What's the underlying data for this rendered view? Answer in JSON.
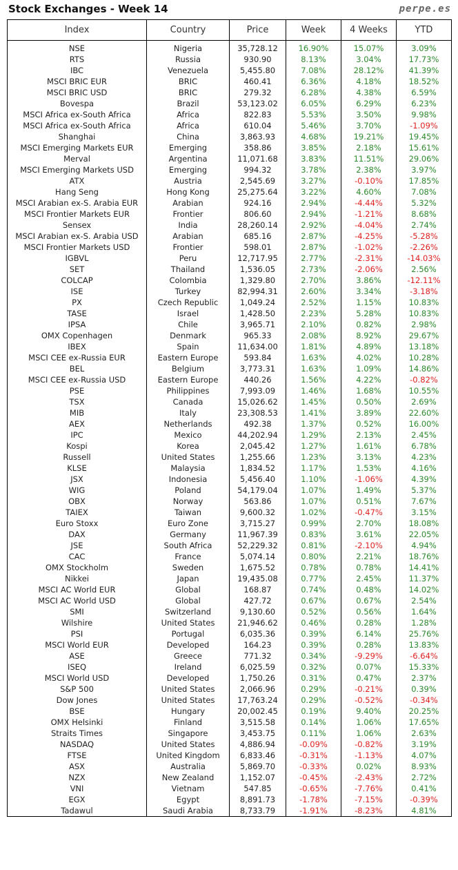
{
  "header": {
    "title": "Stock Exchanges - Week 14",
    "brand": "perpe.es"
  },
  "columns": [
    "Index",
    "Country",
    "Price",
    "Week",
    "4 Weeks",
    "YTD"
  ],
  "colors": {
    "positive": "#2e8b2e",
    "negative": "#e02020"
  },
  "rows": [
    [
      "NSE",
      "Nigeria",
      "35,728.12",
      "16.90%",
      "15.07%",
      "3.09%"
    ],
    [
      "RTS",
      "Russia",
      "930.90",
      "8.13%",
      "3.04%",
      "17.73%"
    ],
    [
      "IBC",
      "Venezuela",
      "5,455.80",
      "7.08%",
      "28.12%",
      "41.39%"
    ],
    [
      "MSCI BRIC EUR",
      "BRIC",
      "460.41",
      "6.36%",
      "4.18%",
      "18.52%"
    ],
    [
      "MSCI BRIC USD",
      "BRIC",
      "279.32",
      "6.28%",
      "4.38%",
      "6.59%"
    ],
    [
      "Bovespa",
      "Brazil",
      "53,123.02",
      "6.05%",
      "6.29%",
      "6.23%"
    ],
    [
      "MSCI Africa ex-South Africa",
      "Africa",
      "822.83",
      "5.53%",
      "3.50%",
      "9.98%"
    ],
    [
      "MSCI Africa ex-South Africa",
      "Africa",
      "610.04",
      "5.46%",
      "3.70%",
      "-1.09%"
    ],
    [
      "Shanghai",
      "China",
      "3,863.93",
      "4.68%",
      "19.21%",
      "19.45%"
    ],
    [
      "MSCI Emerging Markets EUR",
      "Emerging",
      "358.86",
      "3.85%",
      "2.18%",
      "15.61%"
    ],
    [
      "Merval",
      "Argentina",
      "11,071.68",
      "3.83%",
      "11.51%",
      "29.06%"
    ],
    [
      "MSCI Emerging Markets USD",
      "Emerging",
      "994.32",
      "3.78%",
      "2.38%",
      "3.97%"
    ],
    [
      "ATX",
      "Austria",
      "2,545.69",
      "3.27%",
      "-0.10%",
      "17.85%"
    ],
    [
      "Hang Seng",
      "Hong Kong",
      "25,275.64",
      "3.22%",
      "4.60%",
      "7.08%"
    ],
    [
      "MSCI Arabian ex-S. Arabia EUR",
      "Arabian",
      "924.16",
      "2.94%",
      "-4.44%",
      "5.32%"
    ],
    [
      "MSCI Frontier Markets EUR",
      "Frontier",
      "806.60",
      "2.94%",
      "-1.21%",
      "8.68%"
    ],
    [
      "Sensex",
      "India",
      "28,260.14",
      "2.92%",
      "-4.04%",
      "2.74%"
    ],
    [
      "MSCI Arabian ex-S. Arabia USD",
      "Arabian",
      "685.16",
      "2.87%",
      "-4.25%",
      "-5.28%"
    ],
    [
      "MSCI Frontier Markets USD",
      "Frontier",
      "598.01",
      "2.87%",
      "-1.02%",
      "-2.26%"
    ],
    [
      "IGBVL",
      "Peru",
      "12,717.95",
      "2.77%",
      "-2.31%",
      "-14.03%"
    ],
    [
      "SET",
      "Thailand",
      "1,536.05",
      "2.73%",
      "-2.06%",
      "2.56%"
    ],
    [
      "COLCAP",
      "Colombia",
      "1,329.80",
      "2.70%",
      "3.86%",
      "-12.11%"
    ],
    [
      "ISE",
      "Turkey",
      "82,994.31",
      "2.60%",
      "3.34%",
      "-3.18%"
    ],
    [
      "PX",
      "Czech Republic",
      "1,049.24",
      "2.52%",
      "1.15%",
      "10.83%"
    ],
    [
      "TASE",
      "Israel",
      "1,428.50",
      "2.23%",
      "5.28%",
      "10.83%"
    ],
    [
      "IPSA",
      "Chile",
      "3,965.71",
      "2.10%",
      "0.82%",
      "2.98%"
    ],
    [
      "OMX Copenhagen",
      "Denmark",
      "965.33",
      "2.08%",
      "8.92%",
      "29.67%"
    ],
    [
      "IBEX",
      "Spain",
      "11,634.00",
      "1.81%",
      "4.89%",
      "13.18%"
    ],
    [
      "MSCI CEE ex-Russia EUR",
      "Eastern Europe",
      "593.84",
      "1.63%",
      "4.02%",
      "10.28%"
    ],
    [
      "BEL",
      "Belgium",
      "3,773.31",
      "1.63%",
      "1.09%",
      "14.86%"
    ],
    [
      "MSCI CEE ex-Russia USD",
      "Eastern Europe",
      "440.26",
      "1.56%",
      "4.22%",
      "-0.82%"
    ],
    [
      "PSE",
      "Philippines",
      "7,993.09",
      "1.46%",
      "1.68%",
      "10.55%"
    ],
    [
      "TSX",
      "Canada",
      "15,026.62",
      "1.45%",
      "0.50%",
      "2.69%"
    ],
    [
      "MIB",
      "Italy",
      "23,308.53",
      "1.41%",
      "3.89%",
      "22.60%"
    ],
    [
      "AEX",
      "Netherlands",
      "492.38",
      "1.37%",
      "0.52%",
      "16.00%"
    ],
    [
      "IPC",
      "Mexico",
      "44,202.94",
      "1.29%",
      "2.13%",
      "2.45%"
    ],
    [
      "Kospi",
      "Korea",
      "2,045.42",
      "1.27%",
      "1.61%",
      "6.78%"
    ],
    [
      "Russell",
      "United States",
      "1,255.66",
      "1.23%",
      "3.13%",
      "4.23%"
    ],
    [
      "KLSE",
      "Malaysia",
      "1,834.52",
      "1.17%",
      "1.53%",
      "4.16%"
    ],
    [
      "JSX",
      "Indonesia",
      "5,456.40",
      "1.10%",
      "-1.06%",
      "4.39%"
    ],
    [
      "WIG",
      "Poland",
      "54,179.04",
      "1.07%",
      "1.49%",
      "5.37%"
    ],
    [
      "OBX",
      "Norway",
      "563.86",
      "1.07%",
      "0.51%",
      "7.67%"
    ],
    [
      "TAIEX",
      "Taiwan",
      "9,600.32",
      "1.02%",
      "-0.47%",
      "3.15%"
    ],
    [
      "Euro Stoxx",
      "Euro Zone",
      "3,715.27",
      "0.99%",
      "2.70%",
      "18.08%"
    ],
    [
      "DAX",
      "Germany",
      "11,967.39",
      "0.83%",
      "3.61%",
      "22.05%"
    ],
    [
      "JSE",
      "South Africa",
      "52,229.32",
      "0.81%",
      "-2.10%",
      "4.94%"
    ],
    [
      "CAC",
      "France",
      "5,074.14",
      "0.80%",
      "2.21%",
      "18.76%"
    ],
    [
      "OMX Stockholm",
      "Sweden",
      "1,675.52",
      "0.78%",
      "0.78%",
      "14.41%"
    ],
    [
      "Nikkei",
      "Japan",
      "19,435.08",
      "0.77%",
      "2.45%",
      "11.37%"
    ],
    [
      "MSCI AC World EUR",
      "Global",
      "168.87",
      "0.74%",
      "0.48%",
      "14.02%"
    ],
    [
      "MSCI AC World USD",
      "Global",
      "427.72",
      "0.67%",
      "0.67%",
      "2.54%"
    ],
    [
      "SMI",
      "Switzerland",
      "9,130.60",
      "0.52%",
      "0.56%",
      "1.64%"
    ],
    [
      "Wilshire",
      "United States",
      "21,946.62",
      "0.46%",
      "0.28%",
      "1.28%"
    ],
    [
      "PSI",
      "Portugal",
      "6,035.36",
      "0.39%",
      "6.14%",
      "25.76%"
    ],
    [
      "MSCI World EUR",
      "Developed",
      "164.23",
      "0.39%",
      "0.28%",
      "13.83%"
    ],
    [
      "ASE",
      "Greece",
      "771.32",
      "0.34%",
      "-9.29%",
      "-6.64%"
    ],
    [
      "ISEQ",
      "Ireland",
      "6,025.59",
      "0.32%",
      "0.07%",
      "15.33%"
    ],
    [
      "MSCI World USD",
      "Developed",
      "1,750.26",
      "0.31%",
      "0.47%",
      "2.37%"
    ],
    [
      "S&P 500",
      "United States",
      "2,066.96",
      "0.29%",
      "-0.21%",
      "0.39%"
    ],
    [
      "Dow Jones",
      "United States",
      "17,763.24",
      "0.29%",
      "-0.52%",
      "-0.34%"
    ],
    [
      "BSE",
      "Hungary",
      "20,002.45",
      "0.19%",
      "9.40%",
      "20.25%"
    ],
    [
      "OMX Helsinki",
      "Finland",
      "3,515.58",
      "0.14%",
      "1.06%",
      "17.65%"
    ],
    [
      "Straits Times",
      "Singapore",
      "3,453.75",
      "0.11%",
      "1.06%",
      "2.63%"
    ],
    [
      "NASDAQ",
      "United States",
      "4,886.94",
      "-0.09%",
      "-0.82%",
      "3.19%"
    ],
    [
      "FTSE",
      "United Kingdom",
      "6,833.46",
      "-0.31%",
      "-1.13%",
      "4.07%"
    ],
    [
      "ASX",
      "Australia",
      "5,869.70",
      "-0.33%",
      "0.02%",
      "8.93%"
    ],
    [
      "NZX",
      "New Zealand",
      "1,152.07",
      "-0.45%",
      "-2.43%",
      "2.72%"
    ],
    [
      "VNI",
      "Vietnam",
      "547.85",
      "-0.65%",
      "-7.76%",
      "0.41%"
    ],
    [
      "EGX",
      "Egypt",
      "8,891.73",
      "-1.78%",
      "-7.15%",
      "-0.39%"
    ],
    [
      "Tadawul",
      "Saudi Arabia",
      "8,733.79",
      "-1.91%",
      "-8.23%",
      "4.81%"
    ]
  ]
}
